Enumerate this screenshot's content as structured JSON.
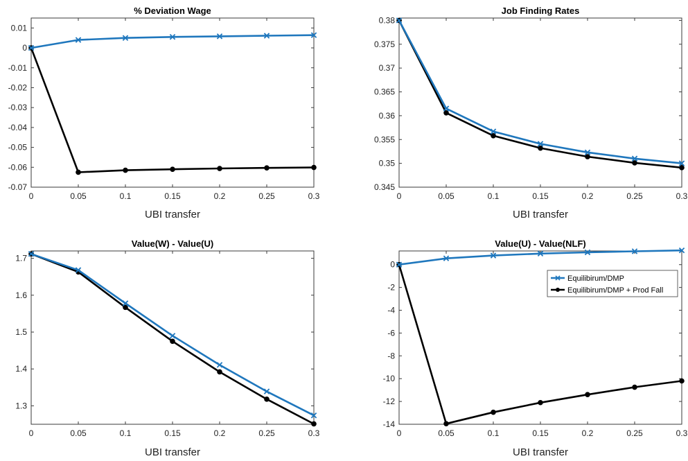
{
  "chart_data": [
    {
      "type": "line",
      "title": "% Deviation Wage",
      "xlabel": "UBI transfer",
      "ylabel": "",
      "x": [
        0,
        0.05,
        0.1,
        0.15,
        0.2,
        0.25,
        0.3
      ],
      "xlim": [
        0,
        0.3
      ],
      "ylim": [
        -0.07,
        0.015
      ],
      "xticks": [
        "0",
        "0.05",
        "0.1",
        "0.15",
        "0.2",
        "0.25",
        "0.3"
      ],
      "yticks": [
        0.01,
        0,
        -0.01,
        -0.02,
        -0.03,
        -0.04,
        -0.05,
        -0.06,
        -0.07
      ],
      "yticklabels": [
        "0.01",
        "0",
        "-0.01",
        "-0.02",
        "-0.03",
        "-0.04",
        "-0.05",
        "-0.06",
        "-0.07"
      ],
      "grid": false,
      "series": [
        {
          "color": "#1f77bd",
          "marker": "x",
          "values": [
            0,
            0.004,
            0.005,
            0.0055,
            0.0058,
            0.0061,
            0.0064
          ]
        },
        {
          "color": "#000000",
          "marker": "o",
          "values": [
            0,
            -0.0625,
            -0.0615,
            -0.061,
            -0.0606,
            -0.0603,
            -0.0601
          ]
        }
      ]
    },
    {
      "type": "line",
      "title": "Job Finding Rates",
      "xlabel": "UBI transfer",
      "ylabel": "",
      "x": [
        0,
        0.05,
        0.1,
        0.15,
        0.2,
        0.25,
        0.3
      ],
      "xlim": [
        0,
        0.3
      ],
      "ylim": [
        0.345,
        0.3805
      ],
      "xticks": [
        "0",
        "0.05",
        "0.1",
        "0.15",
        "0.2",
        "0.25",
        "0.3"
      ],
      "yticks": [
        0.38,
        0.375,
        0.37,
        0.365,
        0.36,
        0.355,
        0.35,
        0.345
      ],
      "yticklabels": [
        "0.38",
        "0.375",
        "0.37",
        "0.365",
        "0.36",
        "0.355",
        "0.35",
        "0.345"
      ],
      "grid": false,
      "series": [
        {
          "color": "#1f77bd",
          "marker": "x",
          "values": [
            0.38,
            0.3615,
            0.3567,
            0.3541,
            0.3523,
            0.351,
            0.35
          ]
        },
        {
          "color": "#000000",
          "marker": "o",
          "values": [
            0.38,
            0.3606,
            0.3558,
            0.3532,
            0.3514,
            0.3501,
            0.3491
          ]
        }
      ]
    },
    {
      "type": "line",
      "title": "Value(W) - Value(U)",
      "xlabel": "UBI transfer",
      "ylabel": "",
      "x": [
        0,
        0.05,
        0.1,
        0.15,
        0.2,
        0.25,
        0.3
      ],
      "xlim": [
        0,
        0.3
      ],
      "ylim": [
        1.25,
        1.72
      ],
      "xticks": [
        "0",
        "0.05",
        "0.1",
        "0.15",
        "0.2",
        "0.25",
        "0.3"
      ],
      "yticks": [
        1.7,
        1.6,
        1.5,
        1.4,
        1.3
      ],
      "yticklabels": [
        "1.7",
        "1.6",
        "1.5",
        "1.4",
        "1.3"
      ],
      "grid": false,
      "series": [
        {
          "color": "#1f77bd",
          "marker": "x",
          "values": [
            1.712,
            1.668,
            1.578,
            1.49,
            1.411,
            1.339,
            1.274
          ]
        },
        {
          "color": "#000000",
          "marker": "o",
          "values": [
            1.712,
            1.663,
            1.567,
            1.475,
            1.392,
            1.318,
            1.251
          ]
        }
      ]
    },
    {
      "type": "line",
      "title": "Value(U) - Value(NLF)",
      "xlabel": "UBI transfer",
      "ylabel": "",
      "x": [
        0,
        0.05,
        0.1,
        0.15,
        0.2,
        0.25,
        0.3
      ],
      "xlim": [
        0,
        0.3
      ],
      "ylim": [
        -14,
        1.2
      ],
      "xticks": [
        "0",
        "0.05",
        "0.1",
        "0.15",
        "0.2",
        "0.25",
        "0.3"
      ],
      "yticks": [
        0,
        -2,
        -4,
        -6,
        -8,
        -10,
        -12,
        -14
      ],
      "yticklabels": [
        "0",
        "-2",
        "-4",
        "-6",
        "-8",
        "-10",
        "-12",
        "-14"
      ],
      "grid": false,
      "legend": {
        "location": "top-right",
        "entries": [
          "Equilibirum/DMP",
          "Equilibirum/DMP + Prod Fall"
        ]
      },
      "series": [
        {
          "name": "Equilibirum/DMP",
          "color": "#1f77bd",
          "marker": "x",
          "values": [
            0,
            0.55,
            0.8,
            0.97,
            1.08,
            1.17,
            1.25
          ]
        },
        {
          "name": "Equilibirum/DMP + Prod Fall",
          "color": "#000000",
          "marker": "o",
          "values": [
            0,
            -13.95,
            -12.95,
            -12.1,
            -11.4,
            -10.75,
            -10.2
          ]
        }
      ]
    }
  ]
}
